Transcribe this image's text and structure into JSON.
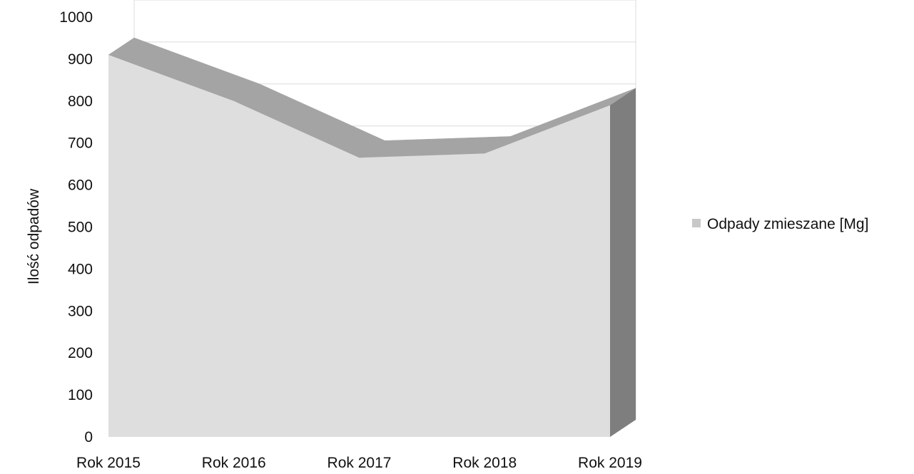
{
  "chart_data": {
    "type": "area",
    "style": "3d",
    "categories": [
      "Rok 2015",
      "Rok 2016",
      "Rok 2017",
      "Rok 2018",
      "Rok 2019"
    ],
    "series": [
      {
        "name": "Odpady zmieszane [Mg]",
        "values": [
          910,
          800,
          665,
          675,
          790
        ]
      }
    ],
    "xlabel": "",
    "ylabel": "Ilość odpadów",
    "ylim": [
      0,
      1000
    ],
    "yticks": [
      0,
      100,
      200,
      300,
      400,
      500,
      600,
      700,
      800,
      900,
      1000
    ],
    "grid": true,
    "legend_position": "right",
    "colors": {
      "front_face": "#dedede",
      "top_face": "#a4a4a4",
      "side_face": "#7e7e7e",
      "legend_swatch": "#c8c8c8",
      "gridline": "#dcdcdc"
    }
  }
}
